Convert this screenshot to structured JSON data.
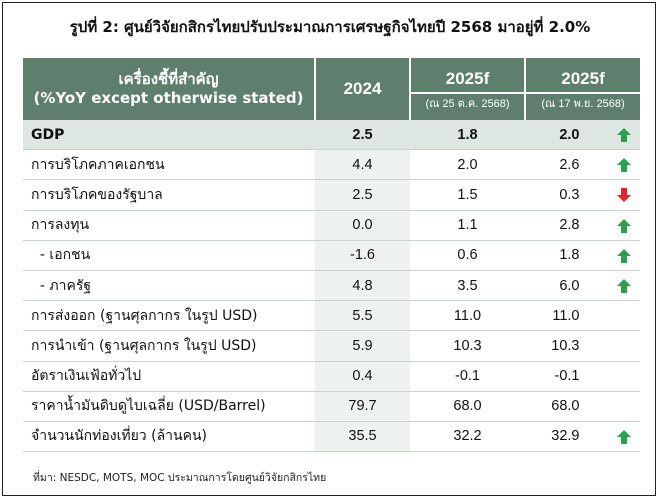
{
  "title": "รูปที่ 2: ศูนย์วิจัยกสิกรไทยปรับประมาณการเศรษฐกิจไทยปี 2568 มาอยู่ที่ 2.0%",
  "header": {
    "label_line1": "เครื่องชี้ที่สำคัญ",
    "label_line2": "(%YoY except otherwise stated)",
    "col1": "2024",
    "col2": "2025f",
    "col2_sub": "(ณ 25 ต.ค. 2568)",
    "col3": "2025f",
    "col3_sub": "(ณ 17 พ.ย. 2568)"
  },
  "rows": [
    {
      "label": "GDP",
      "v2024": "2.5",
      "v2025a": "1.8",
      "v2025b": "2.0",
      "arrow": "up"
    },
    {
      "label": "การบริโภคภาคเอกชน",
      "v2024": "4.4",
      "v2025a": "2.0",
      "v2025b": "2.6",
      "arrow": "up"
    },
    {
      "label": "การบริโภคของรัฐบาล",
      "v2024": "2.5",
      "v2025a": "1.5",
      "v2025b": "0.3",
      "arrow": "down"
    },
    {
      "label": "การลงทุน",
      "v2024": "0.0",
      "v2025a": "1.1",
      "v2025b": "2.8",
      "arrow": "up"
    },
    {
      "label": "  - เอกชน",
      "v2024": "-1.6",
      "v2025a": "0.6",
      "v2025b": "1.8",
      "arrow": "up"
    },
    {
      "label": "  - ภาครัฐ",
      "v2024": "4.8",
      "v2025a": "3.5",
      "v2025b": "6.0",
      "arrow": "up"
    },
    {
      "label": "การส่งออก (ฐานศุลกากร ในรูป USD)",
      "v2024": "5.5",
      "v2025a": "11.0",
      "v2025b": "11.0",
      "arrow": ""
    },
    {
      "label": "การนำเข้า (ฐานศุลกากร ในรูป USD)",
      "v2024": "5.9",
      "v2025a": "10.3",
      "v2025b": "10.3",
      "arrow": ""
    },
    {
      "label": "อัตราเงินเฟ้อทั่วไป",
      "v2024": "0.4",
      "v2025a": "-0.1",
      "v2025b": "-0.1",
      "arrow": ""
    },
    {
      "label": "ราคาน้ำมันดิบดูไบเฉลี่ย (USD/Barrel)",
      "v2024": "79.7",
      "v2025a": "68.0",
      "v2025b": "68.0",
      "arrow": ""
    },
    {
      "label": "จำนวนนักท่องเที่ยว (ล้านคน)",
      "v2024": "35.5",
      "v2025a": "32.2",
      "v2025b": "32.9",
      "arrow": "up"
    }
  ],
  "colors": {
    "header_bg": "#5e7f6e",
    "up_arrow": "#2e9e4f",
    "down_arrow": "#e0262b"
  },
  "footer": "ที่มา: NESDC, MOTS, MOC ประมาณการโดยศูนย์วิจัยกสิกรไทย"
}
